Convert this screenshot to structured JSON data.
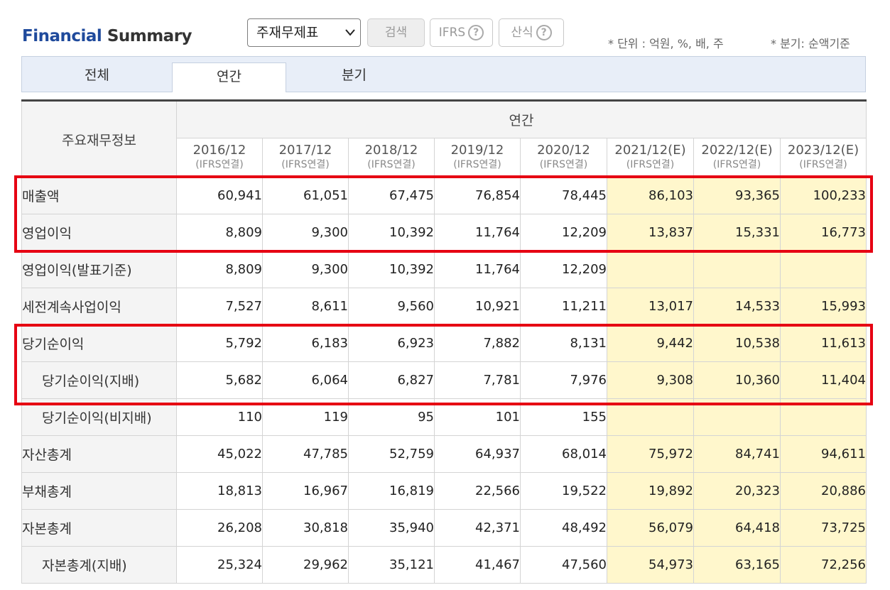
{
  "title": {
    "part1": "Financial",
    "part2": "Summary"
  },
  "controls": {
    "select_value": "주재무제표",
    "search_label": "검색",
    "ifrs_label": "IFRS",
    "formula_label": "산식",
    "help_glyph": "?"
  },
  "notes": {
    "unit": "* 단위 : 억원, %, 배, 주",
    "quarter": "* 분기: 순액기준"
  },
  "tabs": [
    {
      "label": "전체"
    },
    {
      "label": "연간"
    },
    {
      "label": "분기"
    }
  ],
  "table": {
    "row_header": "주요재무정보",
    "group_header": "연간",
    "columns": [
      {
        "year": "2016/12",
        "basis": "(IFRS연결)"
      },
      {
        "year": "2017/12",
        "basis": "(IFRS연결)"
      },
      {
        "year": "2018/12",
        "basis": "(IFRS연결)"
      },
      {
        "year": "2019/12",
        "basis": "(IFRS연결)"
      },
      {
        "year": "2020/12",
        "basis": "(IFRS연결)"
      },
      {
        "year": "2021/12(E)",
        "basis": "(IFRS연결)"
      },
      {
        "year": "2022/12(E)",
        "basis": "(IFRS연결)"
      },
      {
        "year": "2023/12(E)",
        "basis": "(IFRS연결)"
      }
    ],
    "rows": [
      {
        "label": "매출액",
        "values": [
          "60,941",
          "61,051",
          "67,475",
          "76,854",
          "78,445",
          "86,103",
          "93,365",
          "100,233"
        ]
      },
      {
        "label": "영업이익",
        "values": [
          "8,809",
          "9,300",
          "10,392",
          "11,764",
          "12,209",
          "13,837",
          "15,331",
          "16,773"
        ]
      },
      {
        "label": "영업이익(발표기준)",
        "values": [
          "8,809",
          "9,300",
          "10,392",
          "11,764",
          "12,209",
          "",
          "",
          ""
        ]
      },
      {
        "label": "세전계속사업이익",
        "values": [
          "7,527",
          "8,611",
          "9,560",
          "10,921",
          "11,211",
          "13,017",
          "14,533",
          "15,993"
        ]
      },
      {
        "label": "당기순이익",
        "values": [
          "5,792",
          "6,183",
          "6,923",
          "7,882",
          "8,131",
          "9,442",
          "10,538",
          "11,613"
        ]
      },
      {
        "label": "당기순이익(지배)",
        "values": [
          "5,682",
          "6,064",
          "6,827",
          "7,781",
          "7,976",
          "9,308",
          "10,360",
          "11,404"
        ]
      },
      {
        "label": "당기순이익(비지배)",
        "values": [
          "110",
          "119",
          "95",
          "101",
          "155",
          "",
          "",
          ""
        ]
      },
      {
        "label": "자산총계",
        "values": [
          "45,022",
          "47,785",
          "52,759",
          "64,937",
          "68,014",
          "75,972",
          "84,741",
          "94,611"
        ]
      },
      {
        "label": "부채총계",
        "values": [
          "18,813",
          "16,967",
          "16,819",
          "22,566",
          "19,522",
          "19,892",
          "20,323",
          "20,886"
        ]
      },
      {
        "label": "자본총계",
        "values": [
          "26,208",
          "30,818",
          "35,940",
          "42,371",
          "48,492",
          "56,079",
          "64,418",
          "73,725"
        ]
      },
      {
        "label": "자본총계(지배)",
        "values": [
          "25,324",
          "29,962",
          "35,121",
          "41,467",
          "47,560",
          "54,973",
          "63,165",
          "72,256"
        ]
      }
    ]
  },
  "highlight_color": "#e60012",
  "estimate_bg": "#fff7cc"
}
